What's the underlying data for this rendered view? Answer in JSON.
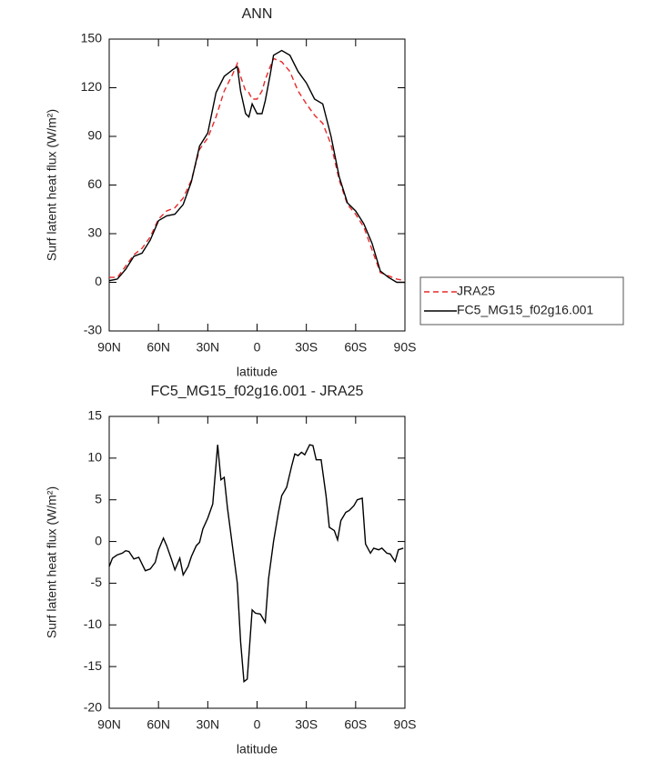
{
  "chart_data": [
    {
      "type": "line",
      "title": "ANN",
      "xlabel": "latitude",
      "ylabel": "Surf latent heat flux (W/m²)",
      "x": [
        90,
        85,
        80,
        75,
        70,
        65,
        60,
        55,
        50,
        45,
        40,
        35,
        30,
        25,
        20,
        15,
        12,
        10,
        7,
        5,
        3,
        0,
        -3,
        -5,
        -8,
        -10,
        -15,
        -20,
        -25,
        -30,
        -35,
        -40,
        -45,
        -50,
        -55,
        -60,
        -65,
        -70,
        -75,
        -80,
        -85,
        -90
      ],
      "series": [
        {
          "name": "JRA25",
          "color": "#e8282a",
          "dash": true,
          "values": [
            3,
            3,
            10,
            17,
            21,
            28,
            39,
            44,
            46,
            52,
            63,
            82,
            89,
            102,
            118,
            128,
            135,
            127,
            118,
            117,
            113,
            113,
            118,
            125,
            133,
            138,
            136,
            130,
            118,
            110,
            103,
            98,
            85,
            63,
            48,
            42,
            34,
            20,
            6,
            4,
            2,
            1
          ]
        },
        {
          "name": "FC5_MG15_f02g16.001",
          "color": "#000000",
          "dash": false,
          "values": [
            1,
            2,
            8,
            16,
            18,
            26,
            38,
            41,
            42,
            48,
            62,
            84,
            92,
            117,
            127,
            131,
            133,
            118,
            104,
            102,
            110,
            104,
            104,
            112,
            128,
            140,
            143,
            140,
            130,
            123,
            113,
            110,
            90,
            65,
            49,
            44,
            36,
            24,
            7,
            3,
            0,
            0
          ]
        }
      ],
      "xlim": [
        90,
        -90
      ],
      "xticks": [
        {
          "value": 90,
          "label": "90N"
        },
        {
          "value": 60,
          "label": "60N"
        },
        {
          "value": 30,
          "label": "30N"
        },
        0,
        {
          "value": -30,
          "label": "30S"
        },
        {
          "value": -60,
          "label": "60S"
        },
        {
          "value": -90,
          "label": "90S"
        }
      ],
      "ylim": [
        -30,
        150
      ],
      "yticks": [
        -30,
        0,
        30,
        60,
        90,
        120,
        150
      ],
      "legend": "right"
    },
    {
      "type": "line",
      "title": "FC5_MG15_f02g16.001 - JRA25",
      "xlabel": "latitude",
      "ylabel": "Surf latent heat flux (W/m²)",
      "x": [
        90,
        88,
        85,
        82,
        80,
        78,
        75,
        72,
        68,
        65,
        62,
        60,
        57,
        55,
        52,
        50,
        47,
        45,
        42,
        40,
        37,
        35,
        33,
        30,
        27,
        24,
        22,
        20,
        18,
        15,
        12,
        10,
        8,
        6,
        3,
        1,
        -2,
        -5,
        -7,
        -10,
        -13,
        -15,
        -18,
        -21,
        -23,
        -25,
        -27,
        -29,
        -32,
        -34,
        -36,
        -39,
        -42,
        -44,
        -47,
        -49,
        -51,
        -54,
        -56,
        -59,
        -61,
        -64,
        -66,
        -69,
        -71,
        -74,
        -76,
        -79,
        -81,
        -84,
        -86,
        -89
      ],
      "values": [
        -3,
        -2,
        -1.6,
        -1.4,
        -1.1,
        -1.2,
        -2.1,
        -1.9,
        -3.5,
        -3.3,
        -2.5,
        -1,
        0.4,
        -0.5,
        -2.2,
        -3.4,
        -2,
        -4,
        -3,
        -1.8,
        -0.5,
        -0.1,
        1.5,
        2.8,
        4.5,
        11.6,
        7.4,
        7.7,
        4,
        -0.5,
        -5,
        -12,
        -16.8,
        -16.5,
        -8.2,
        -8.6,
        -8.7,
        -9.7,
        -4.5,
        0,
        3.5,
        5.5,
        6.5,
        9,
        10.5,
        10.3,
        10.7,
        10.4,
        11.6,
        11.5,
        9.8,
        9.8,
        5.5,
        1.7,
        1.3,
        0.2,
        2.5,
        3.5,
        3.7,
        4.3,
        5,
        5.2,
        -0.3,
        -1.4,
        -0.8,
        -1,
        -0.8,
        -1.4,
        -1.5,
        -2.4,
        -1,
        -0.8
      ],
      "color": "#000000",
      "xlim": [
        90,
        -90
      ],
      "xticks": [
        {
          "value": 90,
          "label": "90N"
        },
        {
          "value": 60,
          "label": "60N"
        },
        {
          "value": 30,
          "label": "30N"
        },
        0,
        {
          "value": -30,
          "label": "30S"
        },
        {
          "value": -60,
          "label": "60S"
        },
        {
          "value": -90,
          "label": "90S"
        }
      ],
      "ylim": [
        -20,
        15
      ],
      "yticks": [
        -20,
        -15,
        -10,
        -5,
        0,
        5,
        10,
        15
      ]
    }
  ]
}
